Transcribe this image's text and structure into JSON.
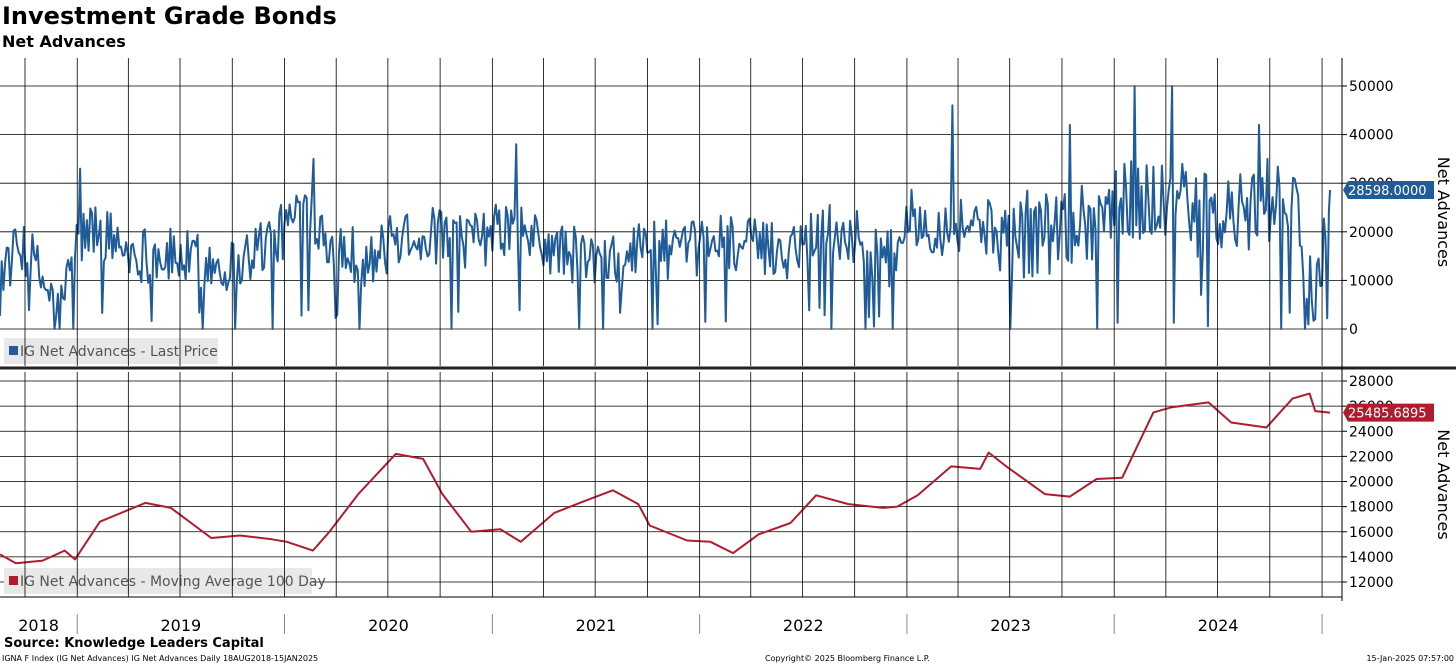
{
  "title": "Investment Grade Bonds",
  "subtitle": "Net Advances",
  "source": "Source: Knowledge Leaders Capital",
  "footer": {
    "left": "IGNA F Index (IG Net Advances) IG Net Advances  Daily 18AUG2018-15JAN2025",
    "center": "Copyright© 2025 Bloomberg Finance L.P.",
    "right": "15-Jan-2025 07:57:00"
  },
  "colors": {
    "top_series": "#1f5c99",
    "bottom_series": "#b01c2e",
    "grid": "#000000",
    "background": "#ffffff"
  },
  "chart_data": [
    {
      "type": "line",
      "series": [
        {
          "name": "IG Net Advances - Last Price",
          "x": [
            "2018-08-18",
            "2018-10-01",
            "2018-12-01",
            "2019-01-01",
            "2019-02-01",
            "2019-04-01",
            "2019-06-01",
            "2019-08-01",
            "2019-10-01",
            "2019-12-01",
            "2020-01-01",
            "2020-02-01",
            "2020-03-01",
            "2020-04-01",
            "2020-06-01",
            "2020-08-01",
            "2020-10-01",
            "2020-12-01",
            "2021-02-01",
            "2021-04-01",
            "2021-06-01",
            "2021-08-01",
            "2021-10-01",
            "2021-12-01",
            "2022-02-01",
            "2022-04-01",
            "2022-06-01",
            "2022-08-01",
            "2022-10-01",
            "2022-12-01",
            "2023-01-01",
            "2023-03-01",
            "2023-05-01",
            "2023-07-01",
            "2023-09-01",
            "2023-11-01",
            "2024-01-01",
            "2024-03-01",
            "2024-05-01",
            "2024-07-01",
            "2024-09-01",
            "2024-11-01",
            "2024-12-15",
            "2025-01-15"
          ],
          "values": [
            12000,
            17000,
            3000,
            18000,
            21000,
            16000,
            15000,
            14000,
            13000,
            18000,
            20000,
            26000,
            22000,
            17000,
            14000,
            20000,
            19000,
            18000,
            21000,
            17000,
            15000,
            13000,
            18000,
            15000,
            19000,
            17000,
            16000,
            21000,
            19000,
            14000,
            23000,
            21000,
            22000,
            19000,
            20000,
            22000,
            25000,
            27000,
            25000,
            22000,
            24000,
            29000,
            5000,
            28598
          ]
        }
      ],
      "xlabel": "",
      "ylabel": "Net Advances",
      "yticks": [
        0,
        10000,
        20000,
        30000,
        40000,
        50000
      ],
      "ylim": [
        -3000,
        55000
      ],
      "xlim": [
        "2018-08-18",
        "2025-01-15"
      ],
      "x_tick_labels": [
        "2018",
        "2019",
        "2020",
        "2021",
        "2022",
        "2023",
        "2024"
      ],
      "last_value_label": "28598.0000",
      "legend": "IG Net Advances - Last Price",
      "legend_position": "bottom-left",
      "spikes": [
        {
          "x": "2018-11-20",
          "value": 0
        },
        {
          "x": "2018-12-24",
          "value": 0
        },
        {
          "x": "2019-01-05",
          "value": 33000
        },
        {
          "x": "2019-08-10",
          "value": 0
        },
        {
          "x": "2019-10-05",
          "value": 0
        },
        {
          "x": "2019-12-10",
          "value": 0
        },
        {
          "x": "2020-02-20",
          "value": 35000
        },
        {
          "x": "2020-05-10",
          "value": 0
        },
        {
          "x": "2020-10-20",
          "value": 0
        },
        {
          "x": "2021-02-10",
          "value": 38000
        },
        {
          "x": "2021-06-01",
          "value": 0
        },
        {
          "x": "2021-07-15",
          "value": 0
        },
        {
          "x": "2021-10-10",
          "value": 0
        },
        {
          "x": "2022-08-20",
          "value": 0
        },
        {
          "x": "2022-10-20",
          "value": 0
        },
        {
          "x": "2022-12-05",
          "value": 0
        },
        {
          "x": "2023-03-20",
          "value": 46000
        },
        {
          "x": "2023-07-01",
          "value": 0
        },
        {
          "x": "2023-10-15",
          "value": 42000
        },
        {
          "x": "2023-12-01",
          "value": 0
        },
        {
          "x": "2024-02-05",
          "value": 50000
        },
        {
          "x": "2024-04-10",
          "value": 50000
        },
        {
          "x": "2024-06-01",
          "value": 7000
        },
        {
          "x": "2024-09-10",
          "value": 42000
        },
        {
          "x": "2024-10-20",
          "value": 0
        },
        {
          "x": "2024-12-01",
          "value": 0
        },
        {
          "x": "2024-12-20",
          "value": 2000
        }
      ]
    },
    {
      "type": "line",
      "series": [
        {
          "name": "IG Net Advances - Moving Average 100 Day",
          "x": [
            "2018-08-18",
            "2018-09-15",
            "2018-11-01",
            "2018-12-10",
            "2018-12-28",
            "2019-02-10",
            "2019-05-01",
            "2019-06-15",
            "2019-08-25",
            "2019-10-15",
            "2019-12-10",
            "2020-01-05",
            "2020-02-20",
            "2020-03-20",
            "2020-05-10",
            "2020-07-15",
            "2020-09-01",
            "2020-10-05",
            "2020-11-25",
            "2021-01-15",
            "2021-02-20",
            "2021-04-20",
            "2021-06-10",
            "2021-08-01",
            "2021-09-15",
            "2021-10-05",
            "2021-12-10",
            "2022-01-20",
            "2022-03-01",
            "2022-04-15",
            "2022-06-10",
            "2022-07-25",
            "2022-09-20",
            "2022-11-20",
            "2022-12-15",
            "2023-01-20",
            "2023-03-20",
            "2023-05-10",
            "2023-05-25",
            "2023-06-25",
            "2023-09-01",
            "2023-10-15",
            "2023-12-01",
            "2024-01-15",
            "2024-03-10",
            "2024-04-10",
            "2024-06-15",
            "2024-07-25",
            "2024-09-25",
            "2024-11-10",
            "2024-12-10",
            "2024-12-20",
            "2025-01-15"
          ],
          "values": [
            14200,
            13500,
            13700,
            14500,
            13800,
            16800,
            18300,
            17900,
            15500,
            15700,
            15400,
            15200,
            14500,
            16000,
            19000,
            22200,
            21800,
            19000,
            16000,
            16200,
            15200,
            17500,
            18400,
            19300,
            18200,
            16500,
            15300,
            15200,
            14300,
            15800,
            16700,
            18900,
            18200,
            17900,
            18000,
            18900,
            21200,
            21000,
            22300,
            21200,
            19000,
            18800,
            20200,
            20300,
            25500,
            25900,
            26300,
            24700,
            24300,
            26600,
            27000,
            25600,
            25486
          ]
        }
      ],
      "xlabel": "",
      "ylabel": "Net Advances",
      "yticks": [
        12000,
        14000,
        16000,
        18000,
        20000,
        22000,
        24000,
        26000,
        28000
      ],
      "ylim": [
        11000,
        28500
      ],
      "xlim": [
        "2018-08-18",
        "2025-01-15"
      ],
      "x_tick_labels": [
        "2018",
        "2019",
        "2020",
        "2021",
        "2022",
        "2023",
        "2024"
      ],
      "last_value_label": "25485.6895",
      "legend": "IG Net Advances - Moving Average 100 Day",
      "legend_position": "bottom-left"
    }
  ]
}
